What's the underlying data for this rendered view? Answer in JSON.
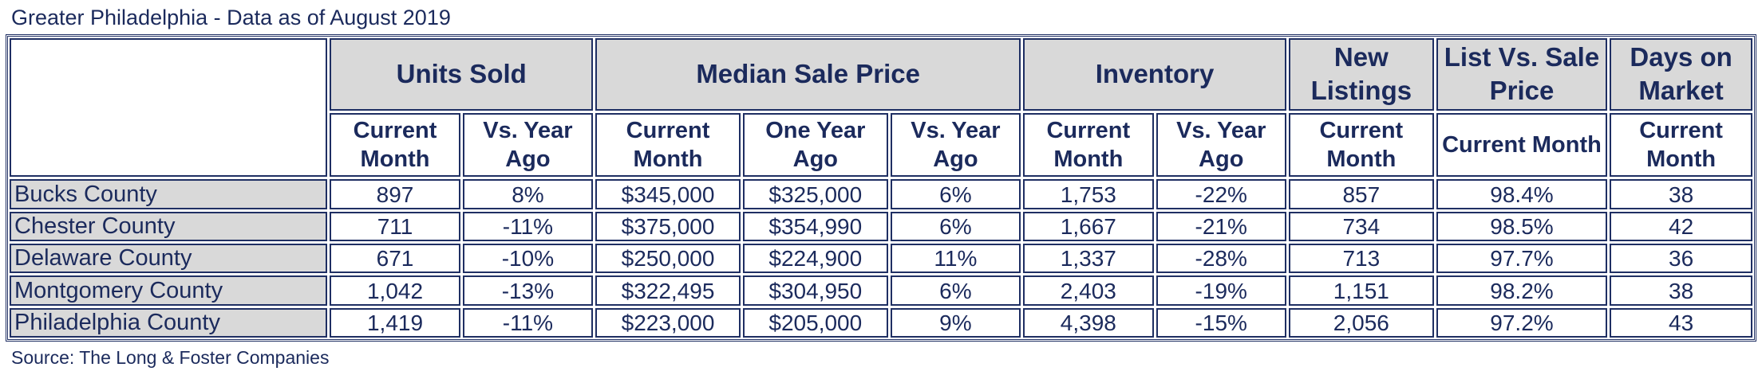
{
  "title": "Greater Philadelphia - Data as of August 2019",
  "source": "Source: The Long & Foster Companies",
  "header_groups": {
    "units_sold": "Units Sold",
    "median_sale_price": "Median Sale Price",
    "inventory": "Inventory",
    "new_listings": "New Listings",
    "list_vs_sale": "List Vs. Sale Price",
    "days_on_market": "Days on Market"
  },
  "subheaders": {
    "current_month": "Current Month",
    "vs_year_ago": "Vs. Year Ago",
    "one_year_ago": "One Year Ago"
  },
  "rows": [
    {
      "county": "Bucks County",
      "units": "897",
      "units_yoy": "8%",
      "price": "$345,000",
      "price_prev": "$325,000",
      "price_yoy": "6%",
      "inventory": "1,753",
      "inventory_yoy": "-22%",
      "new_listings": "857",
      "list_sale": "98.4%",
      "dom": "38"
    },
    {
      "county": "Chester County",
      "units": "711",
      "units_yoy": "-11%",
      "price": "$375,000",
      "price_prev": "$354,990",
      "price_yoy": "6%",
      "inventory": "1,667",
      "inventory_yoy": "-21%",
      "new_listings": "734",
      "list_sale": "98.5%",
      "dom": "42"
    },
    {
      "county": "Delaware County",
      "units": "671",
      "units_yoy": "-10%",
      "price": "$250,000",
      "price_prev": "$224,900",
      "price_yoy": "11%",
      "inventory": "1,337",
      "inventory_yoy": "-28%",
      "new_listings": "713",
      "list_sale": "97.7%",
      "dom": "36"
    },
    {
      "county": "Montgomery County",
      "units": "1,042",
      "units_yoy": "-13%",
      "price": "$322,495",
      "price_prev": "$304,950",
      "price_yoy": "6%",
      "inventory": "2,403",
      "inventory_yoy": "-19%",
      "new_listings": "1,151",
      "list_sale": "98.2%",
      "dom": "38"
    },
    {
      "county": "Philadelphia County",
      "units": "1,419",
      "units_yoy": "-11%",
      "price": "$223,000",
      "price_prev": "$205,000",
      "price_yoy": "9%",
      "inventory": "4,398",
      "inventory_yoy": "-15%",
      "new_listings": "2,056",
      "list_sale": "97.2%",
      "dom": "43"
    }
  ]
}
